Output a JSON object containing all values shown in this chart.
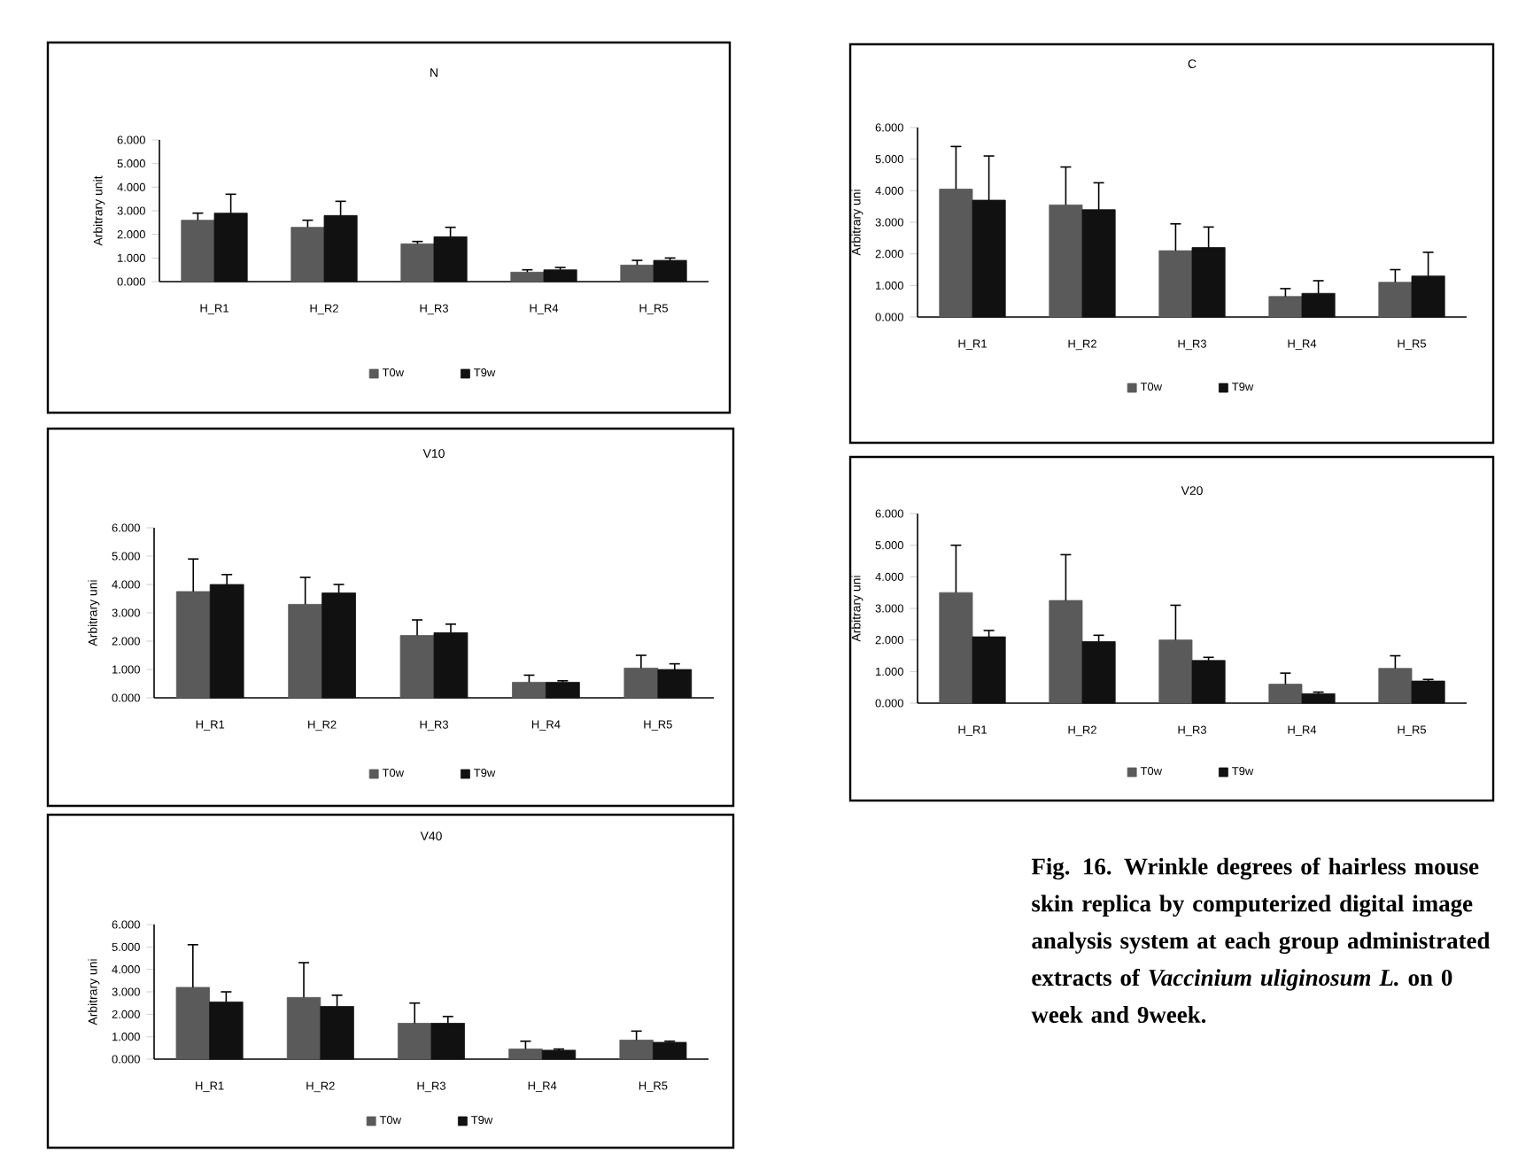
{
  "chart_data": [
    {
      "type": "bar",
      "title": "N",
      "ylabel": "Arbitrary unit",
      "categories": [
        "H_R1",
        "H_R2",
        "H_R3",
        "H_R4",
        "H_R5"
      ],
      "ylim": [
        0,
        6
      ],
      "yticks": [
        {
          "value": 0,
          "label": "0.000"
        },
        {
          "value": 1,
          "label": "1.000"
        },
        {
          "value": 2,
          "label": "2.000"
        },
        {
          "value": 3,
          "label": "3.000"
        },
        {
          "value": 4,
          "label": "4.000"
        },
        {
          "value": 5,
          "label": "5.000"
        },
        {
          "value": 6,
          "label": "6.000"
        }
      ],
      "legend": "bottom",
      "series": [
        {
          "name": "T0w",
          "color": "#5a5a5a",
          "values": [
            2.6,
            2.3,
            1.6,
            0.4,
            0.7
          ],
          "errors": [
            [
              2.6,
              2.9
            ],
            [
              2.3,
              2.6
            ],
            [
              1.6,
              1.7
            ],
            [
              0.4,
              0.5
            ],
            [
              0.7,
              0.9
            ]
          ]
        },
        {
          "name": "T9w",
          "color": "#111111",
          "values": [
            2.9,
            2.8,
            1.9,
            0.5,
            0.9
          ],
          "errors": [
            [
              2.9,
              3.7
            ],
            [
              2.8,
              3.4
            ],
            [
              1.9,
              2.3
            ],
            [
              0.5,
              0.6
            ],
            [
              0.9,
              1.0
            ]
          ]
        }
      ]
    },
    {
      "type": "bar",
      "title": "C",
      "ylabel": "Arbitrary uni",
      "categories": [
        "H_R1",
        "H_R2",
        "H_R3",
        "H_R4",
        "H_R5"
      ],
      "ylim": [
        0,
        6
      ],
      "yticks": [
        {
          "value": 0,
          "label": "0.000"
        },
        {
          "value": 1,
          "label": "1.000"
        },
        {
          "value": 2,
          "label": "2.000"
        },
        {
          "value": 3,
          "label": "3.000"
        },
        {
          "value": 4,
          "label": "4.000"
        },
        {
          "value": 5,
          "label": "5.000"
        },
        {
          "value": 6,
          "label": "6.000"
        }
      ],
      "legend": "bottom",
      "series": [
        {
          "name": "T0w",
          "color": "#5a5a5a",
          "values": [
            4.05,
            3.55,
            2.1,
            0.65,
            1.1
          ],
          "errors": [
            [
              4.05,
              5.4
            ],
            [
              3.55,
              4.75
            ],
            [
              2.1,
              2.95
            ],
            [
              0.65,
              0.9
            ],
            [
              1.1,
              1.5
            ]
          ]
        },
        {
          "name": "T9w",
          "color": "#111111",
          "values": [
            3.7,
            3.4,
            2.2,
            0.75,
            1.3
          ],
          "errors": [
            [
              3.7,
              5.1
            ],
            [
              3.4,
              4.25
            ],
            [
              2.2,
              2.85
            ],
            [
              0.75,
              1.15
            ],
            [
              1.3,
              2.05
            ]
          ]
        }
      ]
    },
    {
      "type": "bar",
      "title": "V10",
      "ylabel": "Arbitrary uni",
      "categories": [
        "H_R1",
        "H_R2",
        "H_R3",
        "H_R4",
        "H_R5"
      ],
      "ylim": [
        0,
        6
      ],
      "yticks": [
        {
          "value": 0,
          "label": "0.000"
        },
        {
          "value": 1,
          "label": "1.000"
        },
        {
          "value": 2,
          "label": "2.000"
        },
        {
          "value": 3,
          "label": "3.000"
        },
        {
          "value": 4,
          "label": "4.000"
        },
        {
          "value": 5,
          "label": "5.000"
        },
        {
          "value": 6,
          "label": "6.000"
        }
      ],
      "legend": "bottom",
      "series": [
        {
          "name": "T0w",
          "color": "#5a5a5a",
          "values": [
            3.75,
            3.3,
            2.2,
            0.55,
            1.05
          ],
          "errors": [
            [
              3.75,
              4.9
            ],
            [
              3.3,
              4.25
            ],
            [
              2.2,
              2.75
            ],
            [
              0.55,
              0.8
            ],
            [
              1.05,
              1.5
            ]
          ]
        },
        {
          "name": "T9w",
          "color": "#111111",
          "values": [
            4.0,
            3.7,
            2.3,
            0.55,
            1.0
          ],
          "errors": [
            [
              4.0,
              4.35
            ],
            [
              3.7,
              4.0
            ],
            [
              2.3,
              2.6
            ],
            [
              0.55,
              0.6
            ],
            [
              1.0,
              1.2
            ]
          ]
        }
      ]
    },
    {
      "type": "bar",
      "title": "V20",
      "ylabel": "Arbitrary uni",
      "categories": [
        "H_R1",
        "H_R2",
        "H_R3",
        "H_R4",
        "H_R5"
      ],
      "ylim": [
        0,
        6
      ],
      "yticks": [
        {
          "value": 0,
          "label": "0.000"
        },
        {
          "value": 1,
          "label": "1.000"
        },
        {
          "value": 2,
          "label": "2.000"
        },
        {
          "value": 3,
          "label": "3.000"
        },
        {
          "value": 4,
          "label": "4.000"
        },
        {
          "value": 5,
          "label": "5.000"
        },
        {
          "value": 6,
          "label": "6.000"
        }
      ],
      "legend": "bottom",
      "series": [
        {
          "name": "T0w",
          "color": "#5a5a5a",
          "values": [
            3.5,
            3.25,
            2.0,
            0.6,
            1.1
          ],
          "errors": [
            [
              3.5,
              5.0
            ],
            [
              3.25,
              4.7
            ],
            [
              2.0,
              3.1
            ],
            [
              0.6,
              0.95
            ],
            [
              1.1,
              1.5
            ]
          ]
        },
        {
          "name": "T9w",
          "color": "#111111",
          "values": [
            2.1,
            1.95,
            1.35,
            0.3,
            0.7
          ],
          "errors": [
            [
              2.1,
              2.3
            ],
            [
              1.95,
              2.15
            ],
            [
              1.35,
              1.45
            ],
            [
              0.3,
              0.35
            ],
            [
              0.7,
              0.75
            ]
          ]
        }
      ]
    },
    {
      "type": "bar",
      "title": "V40",
      "ylabel": "Arbitrary uni",
      "categories": [
        "H_R1",
        "H_R2",
        "H_R3",
        "H_R4",
        "H_R5"
      ],
      "ylim": [
        0,
        6
      ],
      "yticks": [
        {
          "value": 0,
          "label": "0.000"
        },
        {
          "value": 1,
          "label": "1.000"
        },
        {
          "value": 2,
          "label": "2.000"
        },
        {
          "value": 3,
          "label": "3.000"
        },
        {
          "value": 4,
          "label": "4.000"
        },
        {
          "value": 5,
          "label": "5.000"
        },
        {
          "value": 6,
          "label": "6.000"
        }
      ],
      "legend": "bottom",
      "series": [
        {
          "name": "T0w",
          "color": "#5a5a5a",
          "values": [
            3.2,
            2.75,
            1.6,
            0.45,
            0.85
          ],
          "errors": [
            [
              3.2,
              5.1
            ],
            [
              2.75,
              4.3
            ],
            [
              1.6,
              2.5
            ],
            [
              0.45,
              0.8
            ],
            [
              0.85,
              1.25
            ]
          ]
        },
        {
          "name": "T9w",
          "color": "#111111",
          "values": [
            2.55,
            2.35,
            1.6,
            0.4,
            0.75
          ],
          "errors": [
            [
              2.55,
              3.0
            ],
            [
              2.35,
              2.85
            ],
            [
              1.6,
              1.9
            ],
            [
              0.4,
              0.45
            ],
            [
              0.75,
              0.8
            ]
          ]
        }
      ]
    },
    {
      "type": "other",
      "annotations": [
        "Fig. 16. Wrinkle degrees of hairless mouse skin replica by computerized digital image analysis system at each group administrated extracts of *Vaccinium uliginosum L.* on 0 week and 9week."
      ]
    }
  ]
}
